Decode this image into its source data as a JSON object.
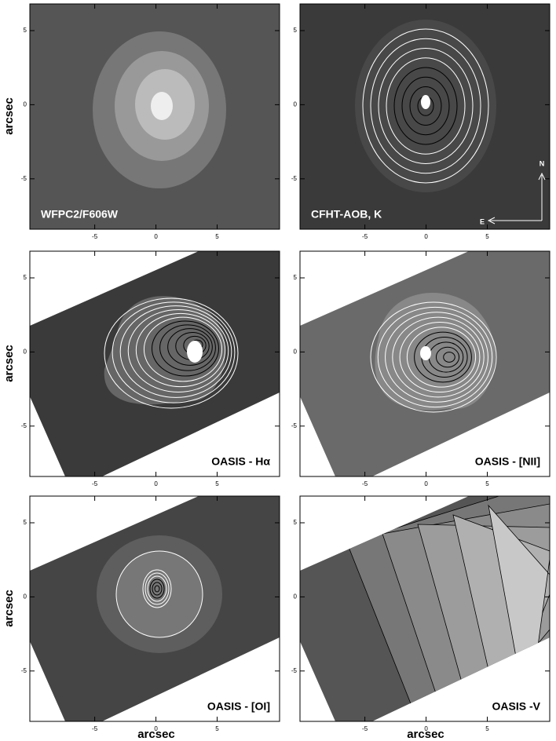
{
  "figure": {
    "axis_label": "arcsec",
    "xlim": [
      -10.3,
      10.1
    ],
    "ylim": [
      -8.4,
      6.8
    ],
    "xticks": [
      -5,
      0,
      5
    ],
    "yticks": [
      -5,
      0,
      5
    ],
    "compass": {
      "north": "N",
      "east": "E"
    },
    "panels": [
      {
        "label": "WFPC2/F606W"
      },
      {
        "label": "CFHT-AOB, K"
      },
      {
        "label": "OASIS - Hα"
      },
      {
        "label": "OASIS - [NII]"
      },
      {
        "label": "OASIS - [OI]"
      },
      {
        "label": "OASIS -V"
      }
    ]
  }
}
